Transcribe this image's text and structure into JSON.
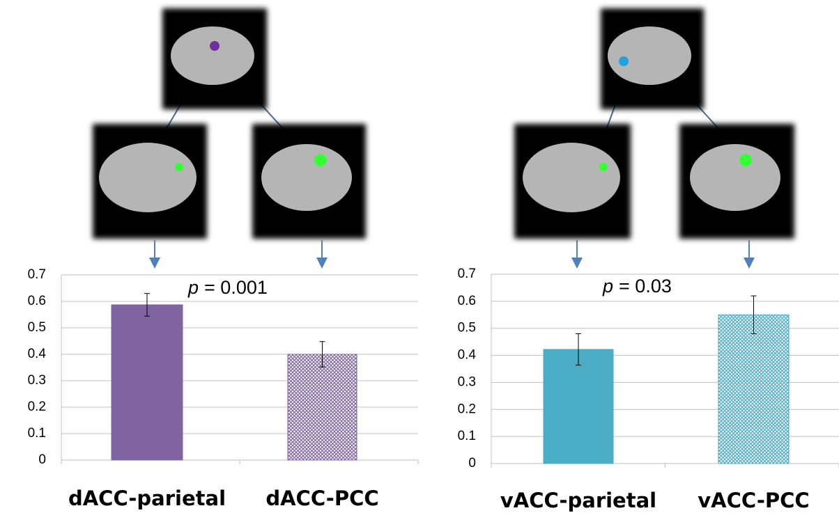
{
  "chart_data": [
    {
      "type": "bar",
      "categories": [
        "dACC-parietal",
        "dACC-PCC"
      ],
      "values": [
        0.587,
        0.4
      ],
      "errors": [
        0.043,
        0.048
      ],
      "color": "#8064a2",
      "fills": [
        "solid",
        "pattern"
      ],
      "ylim": [
        0,
        0.7
      ],
      "yticks": [
        0,
        0.1,
        0.2,
        0.3,
        0.4,
        0.5,
        0.6,
        0.7
      ],
      "grid": true,
      "annotation_var": "p",
      "annotation_value": "= 0.001"
    },
    {
      "type": "bar",
      "categories": [
        "vACC-parietal",
        "vACC-PCC"
      ],
      "values": [
        0.422,
        0.55
      ],
      "errors": [
        0.058,
        0.07
      ],
      "color": "#4bacc6",
      "fills": [
        "solid",
        "pattern"
      ],
      "ylim": [
        0,
        0.7
      ],
      "yticks": [
        0,
        0.1,
        0.2,
        0.3,
        0.4,
        0.5,
        0.6,
        0.7
      ],
      "grid": true,
      "annotation_var": "p",
      "annotation_value": "= 0.03"
    }
  ]
}
